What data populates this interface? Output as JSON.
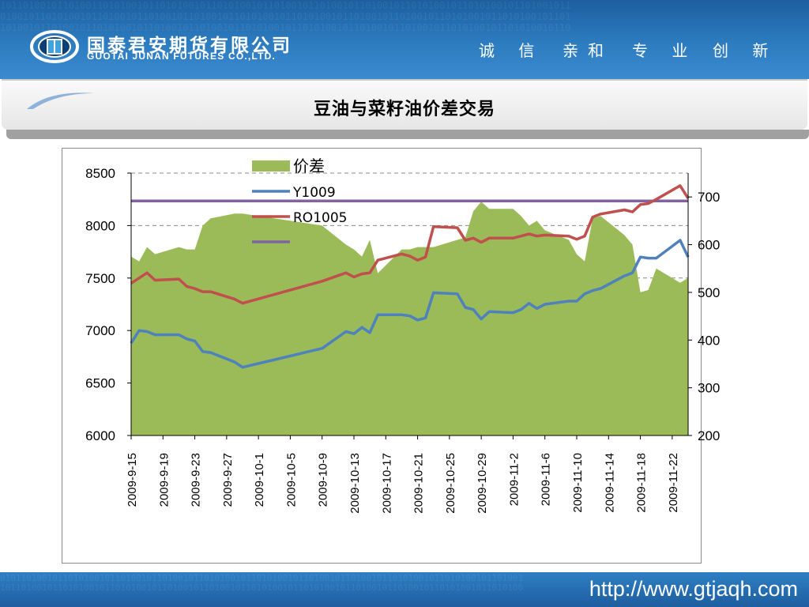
{
  "header": {
    "company_cn": "国泰君安期货有限公司",
    "company_en": "GUOTAI JUNAN FUTURES CO.,LTD.",
    "slogan": [
      "诚 信",
      "亲和",
      "专 业",
      "创 新"
    ]
  },
  "slide_title": "豆油与菜籽油价差交易",
  "footer": {
    "website": "http://www.gtjaqh.com"
  },
  "colors": {
    "spread": "#9bbb59",
    "y1009": "#4f81bd",
    "ro1005": "#c0504d",
    "flat_line": "#8064a2",
    "header_blue": "#2a78bd"
  },
  "chart_data": {
    "type": "area+line",
    "title": "",
    "xlabel": "",
    "ylabel_left": "",
    "ylabel_right": "",
    "left_axis": {
      "min": 6000,
      "max": 8500,
      "ticks": [
        6000,
        6500,
        7000,
        7500,
        8000,
        8500
      ]
    },
    "right_axis": {
      "min": 200,
      "max": 750,
      "ticks": [
        200,
        300,
        400,
        500,
        600,
        700
      ]
    },
    "x_start": "2009-9-15",
    "x_ticks": [
      "2009-9-15",
      "2009-9-19",
      "2009-9-23",
      "2009-9-27",
      "2009-10-1",
      "2009-10-5",
      "2009-10-9",
      "2009-10-13",
      "2009-10-17",
      "2009-10-21",
      "2009-10-25",
      "2009-10-29",
      "2009-11-2",
      "2009-11-6",
      "2009-11-10",
      "2009-11-14",
      "2009-11-18",
      "2009-11-22"
    ],
    "legend_position": "top-left",
    "series": [
      {
        "name": "价差",
        "type": "area",
        "axis": "right",
        "x": [
          "2009-9-15",
          "2009-9-16",
          "2009-9-17",
          "2009-9-18",
          "2009-9-21",
          "2009-9-22",
          "2009-9-23",
          "2009-9-24",
          "2009-9-25",
          "2009-9-28",
          "2009-9-29",
          "2009-10-9",
          "2009-10-12",
          "2009-10-13",
          "2009-10-14",
          "2009-10-15",
          "2009-10-16",
          "2009-10-19",
          "2009-10-20",
          "2009-10-21",
          "2009-10-22",
          "2009-10-23",
          "2009-10-26",
          "2009-10-27",
          "2009-10-28",
          "2009-10-29",
          "2009-10-30",
          "2009-11-2",
          "2009-11-3",
          "2009-11-4",
          "2009-11-5",
          "2009-11-6",
          "2009-11-9",
          "2009-11-10",
          "2009-11-11",
          "2009-11-12",
          "2009-11-13",
          "2009-11-16",
          "2009-11-17",
          "2009-11-18",
          "2009-11-19",
          "2009-11-20",
          "2009-11-23",
          "2009-11-24"
        ],
        "values": [
          575,
          565,
          595,
          580,
          595,
          590,
          590,
          640,
          655,
          665,
          665,
          640,
          600,
          590,
          575,
          610,
          540,
          590,
          590,
          595,
          595,
          595,
          610,
          615,
          670,
          690,
          675,
          675,
          660,
          640,
          650,
          630,
          610,
          580,
          565,
          655,
          660,
          620,
          600,
          500,
          505,
          550,
          520,
          530
        ]
      },
      {
        "name": "Y1009",
        "type": "line",
        "axis": "left",
        "x": [
          "2009-9-15",
          "2009-9-16",
          "2009-9-17",
          "2009-9-18",
          "2009-9-21",
          "2009-9-22",
          "2009-9-23",
          "2009-9-24",
          "2009-9-25",
          "2009-9-28",
          "2009-9-29",
          "2009-10-9",
          "2009-10-12",
          "2009-10-13",
          "2009-10-14",
          "2009-10-15",
          "2009-10-16",
          "2009-10-19",
          "2009-10-20",
          "2009-10-21",
          "2009-10-22",
          "2009-10-23",
          "2009-10-26",
          "2009-10-27",
          "2009-10-28",
          "2009-10-29",
          "2009-10-30",
          "2009-11-2",
          "2009-11-3",
          "2009-11-4",
          "2009-11-5",
          "2009-11-6",
          "2009-11-9",
          "2009-11-10",
          "2009-11-11",
          "2009-11-12",
          "2009-11-13",
          "2009-11-16",
          "2009-11-17",
          "2009-11-18",
          "2009-11-19",
          "2009-11-20",
          "2009-11-23",
          "2009-11-24"
        ],
        "values": [
          6880,
          7000,
          6990,
          6960,
          6960,
          6920,
          6900,
          6800,
          6790,
          6700,
          6650,
          6830,
          6990,
          6970,
          7030,
          6980,
          7150,
          7150,
          7140,
          7100,
          7120,
          7360,
          7350,
          7220,
          7200,
          7110,
          7180,
          7170,
          7200,
          7260,
          7210,
          7250,
          7280,
          7280,
          7350,
          7380,
          7400,
          7520,
          7550,
          7700,
          7690,
          7690,
          7860,
          7700
        ]
      },
      {
        "name": "RO1005",
        "type": "line",
        "axis": "left",
        "x": [
          "2009-9-15",
          "2009-9-16",
          "2009-9-17",
          "2009-9-18",
          "2009-9-21",
          "2009-9-22",
          "2009-9-23",
          "2009-9-24",
          "2009-9-25",
          "2009-9-28",
          "2009-9-29",
          "2009-10-9",
          "2009-10-12",
          "2009-10-13",
          "2009-10-14",
          "2009-10-15",
          "2009-10-16",
          "2009-10-19",
          "2009-10-20",
          "2009-10-21",
          "2009-10-22",
          "2009-10-23",
          "2009-10-26",
          "2009-10-27",
          "2009-10-28",
          "2009-10-29",
          "2009-10-30",
          "2009-11-2",
          "2009-11-3",
          "2009-11-4",
          "2009-11-5",
          "2009-11-6",
          "2009-11-9",
          "2009-11-10",
          "2009-11-11",
          "2009-11-12",
          "2009-11-13",
          "2009-11-16",
          "2009-11-17",
          "2009-11-18",
          "2009-11-19",
          "2009-11-20",
          "2009-11-23",
          "2009-11-24"
        ],
        "values": [
          7450,
          7500,
          7550,
          7480,
          7490,
          7420,
          7400,
          7370,
          7370,
          7300,
          7260,
          7470,
          7550,
          7510,
          7540,
          7550,
          7670,
          7730,
          7710,
          7670,
          7700,
          7990,
          7980,
          7860,
          7880,
          7840,
          7880,
          7880,
          7900,
          7920,
          7900,
          7910,
          7900,
          7870,
          7900,
          8080,
          8110,
          8150,
          8130,
          8200,
          8210,
          8250,
          8380,
          8260
        ]
      },
      {
        "name": "",
        "type": "flat",
        "axis": "left",
        "values": [
          8235
        ]
      }
    ]
  }
}
